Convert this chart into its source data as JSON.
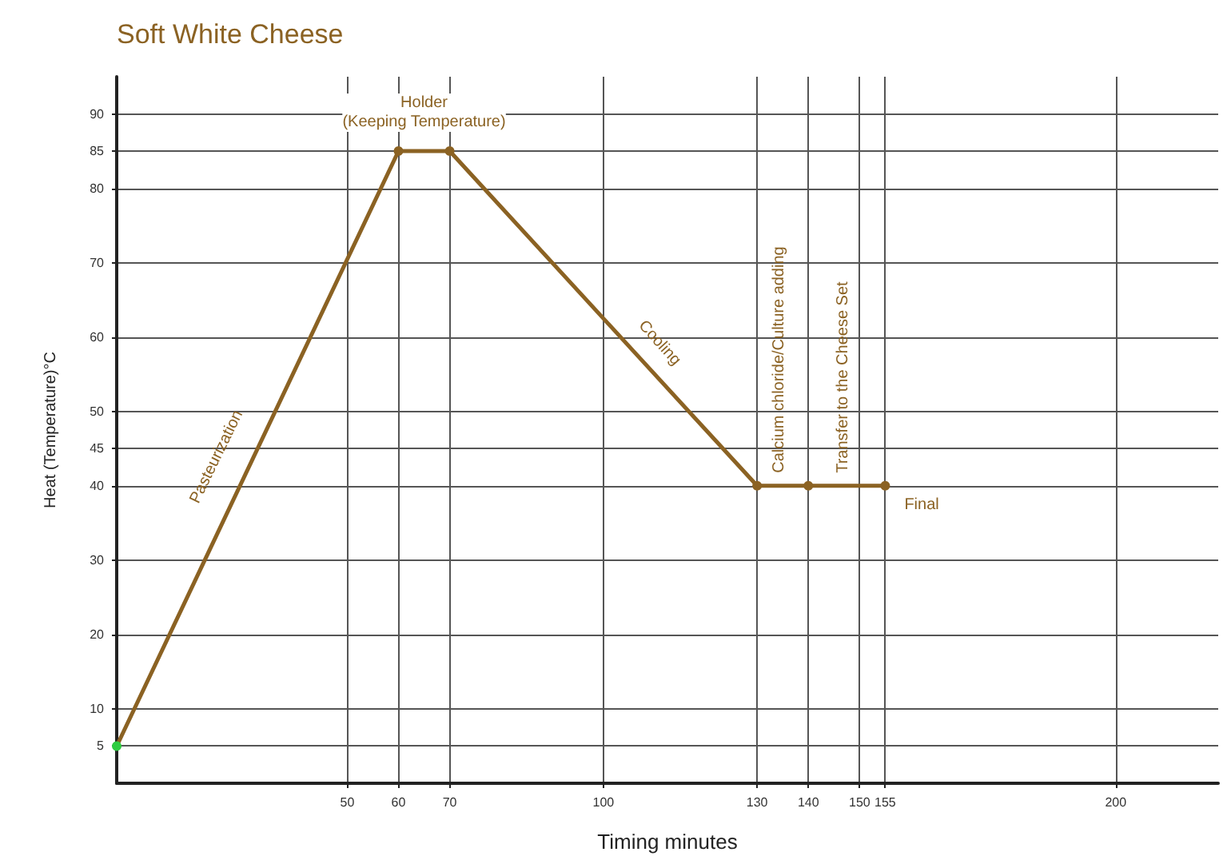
{
  "chart_data": {
    "type": "line",
    "title": "Soft White Cheese",
    "xlabel": "Timing minutes",
    "ylabel": "Heat (Temperature)°C",
    "x": [
      5,
      60,
      70,
      130,
      140,
      155
    ],
    "series": [
      {
        "color": "#8b6223",
        "colors": [
          "#2ecc40",
          "#8b6223",
          "#8b6223",
          "#8b6223",
          "#8b6223",
          "#8b6223"
        ],
        "values": [
          5,
          85,
          85,
          40,
          40,
          40
        ]
      }
    ],
    "xlim": [
      5,
      220
    ],
    "xticks": [
      50,
      60,
      70,
      100,
      130,
      140,
      150,
      155,
      200
    ],
    "ylim": [
      0,
      95
    ],
    "yticks": [
      5,
      10,
      20,
      30,
      40,
      45,
      50,
      60,
      70,
      80,
      85,
      90
    ],
    "grid": true,
    "marker": "circle",
    "line_style": "solid",
    "annotations": [
      {
        "text": "Holder\n(Keeping Temperature)",
        "x": 65,
        "y": 85
      },
      {
        "text": "Pasteurization",
        "x": 30,
        "y": 42
      },
      {
        "text": "Cooling",
        "x": 107,
        "y": 57
      },
      {
        "text": "Calcium chloride/Culture adding",
        "x": 130,
        "y": 40
      },
      {
        "text": "Transfer to the Cheese Set",
        "x": 140,
        "y": 40
      },
      {
        "text": "Final",
        "x": 155,
        "y": 40
      }
    ]
  }
}
